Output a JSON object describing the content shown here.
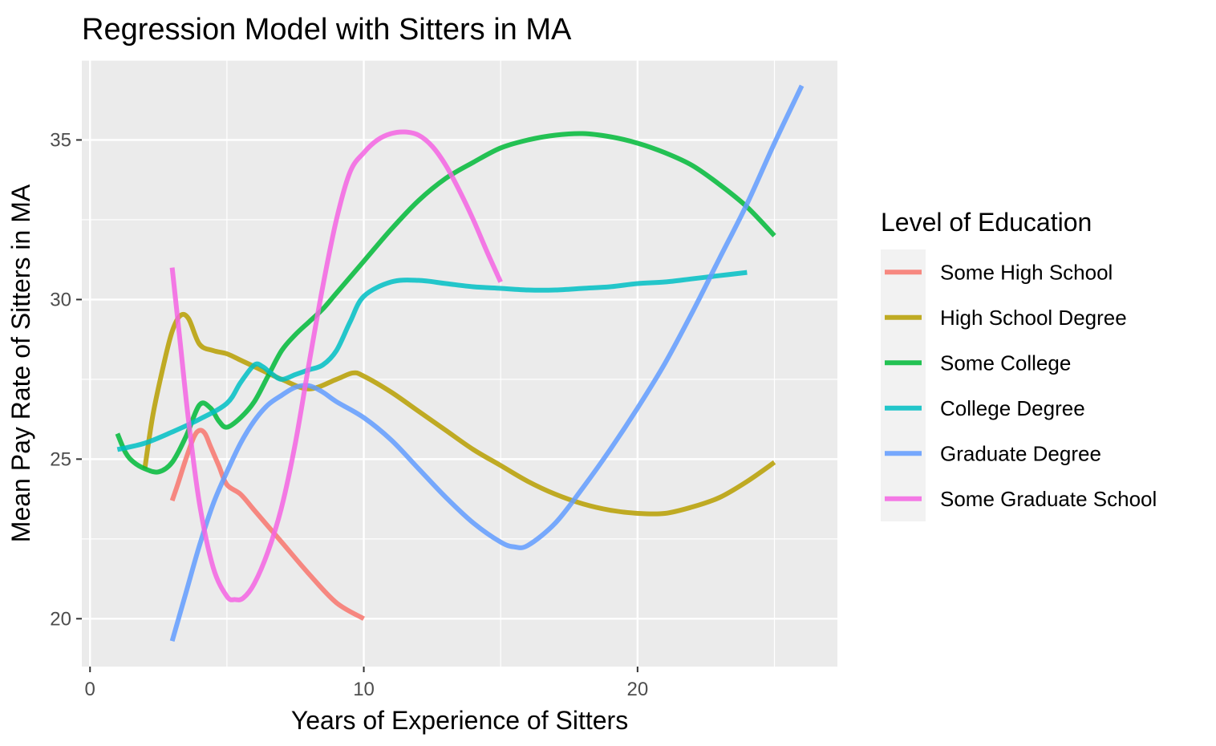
{
  "chart_data": {
    "type": "line",
    "title": "Regression Model with Sitters in MA",
    "xlabel": "Years of Experience of Sitters",
    "ylabel": "Mean Pay Rate of Sitters in MA",
    "xlim": [
      -0.3,
      27.3
    ],
    "ylim": [
      18.5,
      37.5
    ],
    "x_ticks": [
      0,
      10,
      20
    ],
    "y_ticks": [
      20,
      25,
      30,
      35
    ],
    "grid": true,
    "legend": {
      "title": "Level of Education",
      "position": "right"
    },
    "series": [
      {
        "name": "Some High School",
        "color": "#F8766D",
        "points": [
          [
            3,
            23.7
          ],
          [
            3.2,
            24.2
          ],
          [
            3.5,
            25.0
          ],
          [
            3.8,
            25.7
          ],
          [
            4.0,
            25.9
          ],
          [
            4.2,
            25.8
          ],
          [
            4.4,
            25.4
          ],
          [
            4.7,
            24.8
          ],
          [
            5.0,
            24.2
          ],
          [
            5.5,
            23.9
          ],
          [
            6,
            23.4
          ],
          [
            7,
            22.4
          ],
          [
            8,
            21.4
          ],
          [
            9,
            20.5
          ],
          [
            10,
            20.0
          ]
        ]
      },
      {
        "name": "High School Degree",
        "color": "#B79F00",
        "points": [
          [
            2,
            24.7
          ],
          [
            2.3,
            26.4
          ],
          [
            2.7,
            28.0
          ],
          [
            3.0,
            29.0
          ],
          [
            3.3,
            29.5
          ],
          [
            3.6,
            29.4
          ],
          [
            4.0,
            28.6
          ],
          [
            4.5,
            28.4
          ],
          [
            5.0,
            28.3
          ],
          [
            5.5,
            28.1
          ],
          [
            6,
            27.9
          ],
          [
            7,
            27.5
          ],
          [
            8,
            27.2
          ],
          [
            9,
            27.5
          ],
          [
            9.6,
            27.7
          ],
          [
            10,
            27.6
          ],
          [
            11,
            27.1
          ],
          [
            12,
            26.5
          ],
          [
            13,
            25.9
          ],
          [
            14,
            25.3
          ],
          [
            15,
            24.8
          ],
          [
            16,
            24.3
          ],
          [
            17,
            23.9
          ],
          [
            18,
            23.6
          ],
          [
            19,
            23.4
          ],
          [
            20,
            23.3
          ],
          [
            21,
            23.3
          ],
          [
            22,
            23.5
          ],
          [
            23,
            23.8
          ],
          [
            24,
            24.3
          ],
          [
            25,
            24.9
          ]
        ]
      },
      {
        "name": "Some College",
        "color": "#00BA38",
        "points": [
          [
            1,
            25.8
          ],
          [
            1.3,
            25.2
          ],
          [
            1.6,
            24.9
          ],
          [
            2.0,
            24.7
          ],
          [
            2.5,
            24.6
          ],
          [
            3.0,
            24.9
          ],
          [
            3.5,
            25.7
          ],
          [
            4.0,
            26.7
          ],
          [
            4.4,
            26.6
          ],
          [
            4.7,
            26.2
          ],
          [
            5.0,
            26.0
          ],
          [
            5.5,
            26.3
          ],
          [
            6,
            26.8
          ],
          [
            6.5,
            27.6
          ],
          [
            7,
            28.4
          ],
          [
            7.5,
            28.9
          ],
          [
            8,
            29.3
          ],
          [
            8.5,
            29.7
          ],
          [
            9,
            30.2
          ],
          [
            10,
            31.2
          ],
          [
            11,
            32.2
          ],
          [
            12,
            33.1
          ],
          [
            13,
            33.8
          ],
          [
            14,
            34.3
          ],
          [
            15,
            34.75
          ],
          [
            16,
            35.0
          ],
          [
            17,
            35.15
          ],
          [
            18,
            35.2
          ],
          [
            19,
            35.1
          ],
          [
            20,
            34.9
          ],
          [
            21,
            34.6
          ],
          [
            22,
            34.2
          ],
          [
            23,
            33.6
          ],
          [
            24,
            32.9
          ],
          [
            25,
            32.0
          ]
        ]
      },
      {
        "name": "College Degree",
        "color": "#00BFC4",
        "points": [
          [
            1,
            25.3
          ],
          [
            2,
            25.5
          ],
          [
            3,
            25.85
          ],
          [
            4,
            26.25
          ],
          [
            5,
            26.75
          ],
          [
            5.5,
            27.4
          ],
          [
            6,
            27.95
          ],
          [
            6.3,
            27.9
          ],
          [
            6.6,
            27.7
          ],
          [
            7,
            27.5
          ],
          [
            7.5,
            27.65
          ],
          [
            8,
            27.8
          ],
          [
            8.5,
            27.95
          ],
          [
            9,
            28.4
          ],
          [
            9.5,
            29.3
          ],
          [
            10,
            30.1
          ],
          [
            11,
            30.55
          ],
          [
            12,
            30.6
          ],
          [
            13,
            30.5
          ],
          [
            14,
            30.4
          ],
          [
            15,
            30.35
          ],
          [
            16,
            30.3
          ],
          [
            17,
            30.3
          ],
          [
            18,
            30.35
          ],
          [
            19,
            30.4
          ],
          [
            20,
            30.5
          ],
          [
            21,
            30.55
          ],
          [
            22,
            30.65
          ],
          [
            23,
            30.75
          ],
          [
            24,
            30.85
          ]
        ]
      },
      {
        "name": "Graduate Degree",
        "color": "#619CFF",
        "points": [
          [
            3,
            19.3
          ],
          [
            3.5,
            20.8
          ],
          [
            4,
            22.3
          ],
          [
            4.5,
            23.6
          ],
          [
            5,
            24.6
          ],
          [
            5.5,
            25.5
          ],
          [
            6,
            26.2
          ],
          [
            6.5,
            26.7
          ],
          [
            7,
            27.0
          ],
          [
            7.5,
            27.25
          ],
          [
            8,
            27.3
          ],
          [
            8.5,
            27.1
          ],
          [
            9,
            26.8
          ],
          [
            10,
            26.3
          ],
          [
            11,
            25.6
          ],
          [
            12,
            24.7
          ],
          [
            13,
            23.8
          ],
          [
            14,
            23.0
          ],
          [
            15,
            22.4
          ],
          [
            15.5,
            22.25
          ],
          [
            16,
            22.3
          ],
          [
            17,
            23.0
          ],
          [
            18,
            24.1
          ],
          [
            19,
            25.3
          ],
          [
            20,
            26.6
          ],
          [
            21,
            28.0
          ],
          [
            22,
            29.6
          ],
          [
            23,
            31.3
          ],
          [
            24,
            33.0
          ],
          [
            25,
            34.9
          ],
          [
            26,
            36.7
          ]
        ]
      },
      {
        "name": "Some Graduate School",
        "color": "#F564E3",
        "points": [
          [
            3,
            31.0
          ],
          [
            3.3,
            28.6
          ],
          [
            3.6,
            26.2
          ],
          [
            4,
            23.6
          ],
          [
            4.5,
            21.6
          ],
          [
            5,
            20.7
          ],
          [
            5.3,
            20.6
          ],
          [
            5.6,
            20.65
          ],
          [
            6,
            21.1
          ],
          [
            6.5,
            22.1
          ],
          [
            7,
            23.5
          ],
          [
            7.5,
            25.5
          ],
          [
            8,
            28.0
          ],
          [
            8.5,
            30.4
          ],
          [
            9,
            32.5
          ],
          [
            9.5,
            34.0
          ],
          [
            10,
            34.6
          ],
          [
            10.5,
            35.0
          ],
          [
            11,
            35.2
          ],
          [
            11.5,
            35.25
          ],
          [
            12,
            35.15
          ],
          [
            12.5,
            34.8
          ],
          [
            13,
            34.2
          ],
          [
            13.5,
            33.4
          ],
          [
            14,
            32.5
          ],
          [
            14.5,
            31.5
          ],
          [
            15,
            30.55
          ]
        ]
      }
    ]
  }
}
